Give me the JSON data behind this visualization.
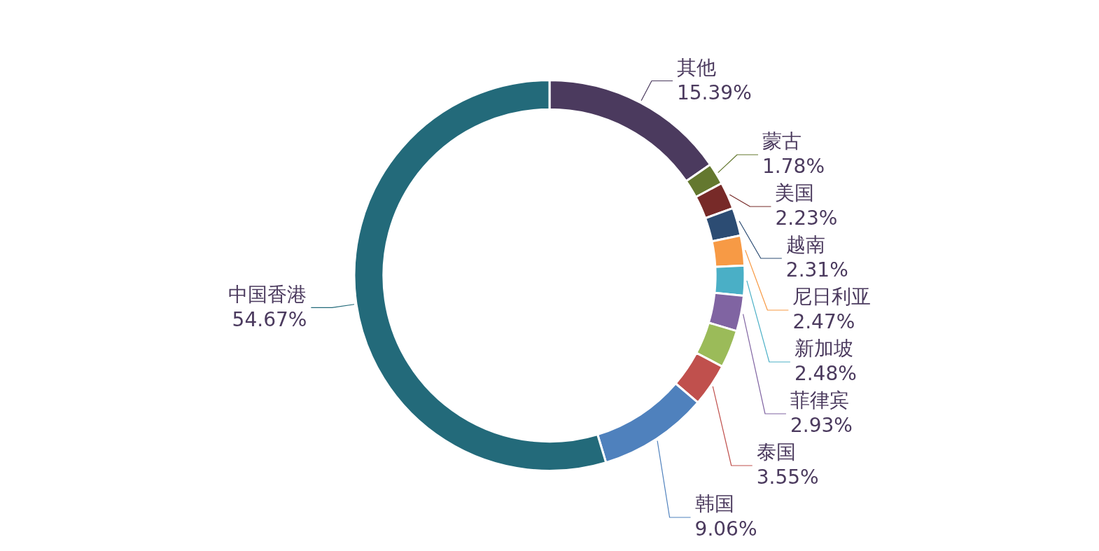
{
  "chart_data": {
    "type": "donut",
    "categories": [
      "其他",
      "蒙古",
      "美国",
      "越南",
      "尼日利亚",
      "新加坡",
      "菲律宾",
      null,
      "泰国",
      "韩国",
      "中国香港"
    ],
    "values": [
      15.39,
      1.78,
      2.23,
      2.31,
      2.47,
      2.48,
      2.93,
      3.13,
      3.55,
      9.06,
      54.67
    ],
    "colors": [
      "#4b3a5e",
      "#64782f",
      "#772a28",
      "#2c4c73",
      "#f79a45",
      "#4aafc6",
      "#8064a2",
      "#9bbb59",
      "#c0504d",
      "#4f81bd",
      "#236a7a"
    ],
    "value_labels": [
      "15.39%",
      "1.78%",
      "2.23%",
      "2.31%",
      "2.47%",
      "2.48%",
      "2.93%",
      null,
      "3.55%",
      "9.06%",
      "54.67%"
    ],
    "legend": false
  }
}
